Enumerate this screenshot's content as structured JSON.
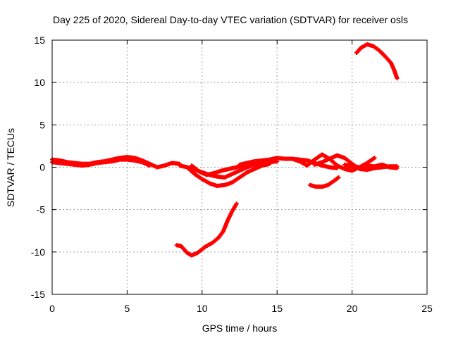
{
  "chart_data": {
    "type": "scatter",
    "title": "Day 225 of 2020, Sidereal Day-to-day VTEC variation (SDTVAR) for receiver osls",
    "xlabel": "GPS time / hours",
    "ylabel": "SDTVAR / TECUs",
    "xlim": [
      0,
      25
    ],
    "ylim": [
      -15,
      15
    ],
    "xticks": [
      0,
      5,
      10,
      15,
      20,
      25
    ],
    "yticks": [
      -15,
      -10,
      -5,
      0,
      5,
      10,
      15
    ],
    "grid": true,
    "legend": "none",
    "marker_color": "#ff0000",
    "series": [
      {
        "name": "arc-main-1",
        "points": [
          [
            0,
            0.9
          ],
          [
            0.5,
            0.8
          ],
          [
            1,
            0.6
          ],
          [
            1.5,
            0.5
          ],
          [
            2,
            0.4
          ],
          [
            2.5,
            0.4
          ],
          [
            3,
            0.6
          ],
          [
            3.5,
            0.7
          ],
          [
            4,
            0.9
          ],
          [
            4.5,
            1.1
          ],
          [
            5,
            1.2
          ],
          [
            5.5,
            1.1
          ],
          [
            6,
            0.8
          ],
          [
            6.5,
            0.4
          ],
          [
            7,
            0.0
          ],
          [
            7.5,
            0.2
          ],
          [
            8,
            0.5
          ],
          [
            8.5,
            0.4
          ]
        ]
      },
      {
        "name": "arc-main-2",
        "points": [
          [
            0,
            0.6
          ],
          [
            0.5,
            0.5
          ],
          [
            1,
            0.4
          ],
          [
            1.5,
            0.3
          ],
          [
            2,
            0.2
          ],
          [
            2.5,
            0.3
          ],
          [
            3,
            0.5
          ],
          [
            3.5,
            0.6
          ],
          [
            4,
            0.7
          ],
          [
            4.5,
            0.9
          ],
          [
            5,
            0.9
          ],
          [
            5.5,
            0.8
          ],
          [
            6,
            0.6
          ],
          [
            6.5,
            0.2
          ]
        ]
      },
      {
        "name": "arc-mid-1",
        "points": [
          [
            8.5,
            0.2
          ],
          [
            9,
            0.0
          ],
          [
            9.5,
            -0.3
          ],
          [
            10,
            -0.6
          ],
          [
            10.5,
            -0.9
          ],
          [
            11,
            -1.1
          ],
          [
            11.5,
            -1.2
          ],
          [
            12,
            -0.8
          ],
          [
            12.5,
            -0.4
          ],
          [
            13,
            0.0
          ],
          [
            13.5,
            0.3
          ],
          [
            14,
            0.5
          ],
          [
            14.5,
            0.6
          ],
          [
            15,
            0.7
          ]
        ]
      },
      {
        "name": "arc-mid-2",
        "points": [
          [
            9,
            0.0
          ],
          [
            9.5,
            -0.8
          ],
          [
            10,
            -1.4
          ],
          [
            10.5,
            -1.9
          ],
          [
            11,
            -2.2
          ],
          [
            11.5,
            -2.1
          ],
          [
            12,
            -1.8
          ],
          [
            12.5,
            -1.2
          ],
          [
            13,
            -0.6
          ],
          [
            13.5,
            -0.2
          ],
          [
            14,
            0.2
          ],
          [
            14.5,
            0.4
          ]
        ]
      },
      {
        "name": "arc-mid-3",
        "points": [
          [
            9.3,
            0.2
          ],
          [
            9.8,
            -0.5
          ],
          [
            10.3,
            -0.9
          ],
          [
            10.8,
            -0.7
          ],
          [
            11.3,
            -0.4
          ],
          [
            11.8,
            -0.2
          ],
          [
            12.3,
            0.0
          ],
          [
            12.8,
            0.2
          ],
          [
            13.3,
            0.5
          ],
          [
            13.8,
            0.4
          ],
          [
            14.3,
            0.3
          ]
        ]
      },
      {
        "name": "arc-mid-4",
        "points": [
          [
            12.5,
            0.3
          ],
          [
            13,
            0.5
          ],
          [
            13.5,
            0.7
          ],
          [
            14,
            0.8
          ],
          [
            14.5,
            0.9
          ],
          [
            15,
            1.1
          ],
          [
            15.5,
            1.0
          ],
          [
            16,
            1.0
          ],
          [
            16.5,
            0.9
          ],
          [
            17,
            0.8
          ],
          [
            17.5,
            0.5
          ],
          [
            18,
            0.2
          ],
          [
            18.5,
            0.0
          ],
          [
            19,
            -0.1
          ]
        ]
      },
      {
        "name": "arc-late-1",
        "points": [
          [
            16,
            1.0
          ],
          [
            16.5,
            0.7
          ],
          [
            17,
            0.2
          ],
          [
            17.5,
            0.9
          ],
          [
            18,
            1.5
          ],
          [
            18.5,
            1.0
          ],
          [
            19,
            0.2
          ],
          [
            19.5,
            -0.2
          ],
          [
            20,
            -0.4
          ],
          [
            20.5,
            0.0
          ],
          [
            21,
            0.5
          ],
          [
            21.5,
            1.1
          ]
        ]
      },
      {
        "name": "arc-late-2",
        "points": [
          [
            17.5,
            0.3
          ],
          [
            18,
            0.6
          ],
          [
            18.5,
            1.0
          ],
          [
            19,
            1.4
          ],
          [
            19.5,
            1.1
          ],
          [
            20,
            0.4
          ],
          [
            20.5,
            -0.2
          ],
          [
            21,
            -0.3
          ],
          [
            21.5,
            -0.1
          ],
          [
            22,
            0.0
          ],
          [
            22.5,
            0.1
          ],
          [
            23,
            0.1
          ]
        ]
      },
      {
        "name": "arc-late-3",
        "points": [
          [
            19.5,
            0.3
          ],
          [
            20,
            0.1
          ],
          [
            20.5,
            0.0
          ],
          [
            21,
            0.2
          ],
          [
            21.5,
            0.1
          ],
          [
            22,
            0.3
          ],
          [
            22.5,
            0.0
          ],
          [
            23,
            -0.1
          ]
        ]
      },
      {
        "name": "arc-low-short",
        "points": [
          [
            17.2,
            -2.1
          ],
          [
            17.6,
            -2.3
          ],
          [
            18,
            -2.3
          ],
          [
            18.4,
            -2.1
          ],
          [
            18.8,
            -1.6
          ],
          [
            19.1,
            -1.2
          ]
        ]
      },
      {
        "name": "arc-deep",
        "points": [
          [
            8.3,
            -9.2
          ],
          [
            8.6,
            -9.3
          ],
          [
            9,
            -10.1
          ],
          [
            9.3,
            -10.4
          ],
          [
            9.7,
            -10.1
          ],
          [
            10.2,
            -9.4
          ],
          [
            10.7,
            -8.9
          ],
          [
            11.1,
            -8.3
          ],
          [
            11.4,
            -7.6
          ],
          [
            11.7,
            -6.3
          ],
          [
            12,
            -5.2
          ],
          [
            12.3,
            -4.3
          ]
        ]
      },
      {
        "name": "arc-high",
        "points": [
          [
            20.3,
            13.5
          ],
          [
            20.6,
            14.1
          ],
          [
            21,
            14.5
          ],
          [
            21.4,
            14.3
          ],
          [
            21.8,
            13.8
          ],
          [
            22.2,
            13.1
          ],
          [
            22.6,
            12.3
          ],
          [
            22.8,
            11.5
          ],
          [
            23,
            10.5
          ]
        ]
      }
    ]
  }
}
